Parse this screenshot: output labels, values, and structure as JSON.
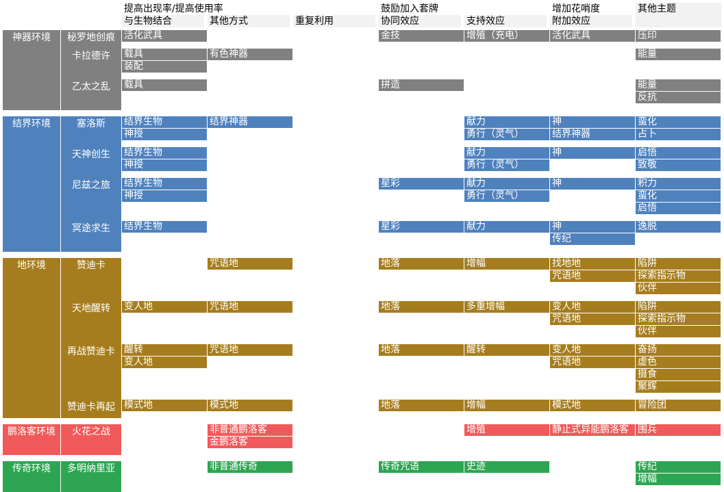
{
  "header": {
    "groups": [
      "提高出现率/提高使用率",
      "鼓励加入套牌",
      "增加花哨度",
      "其他主题"
    ],
    "columns": [
      "与生物结合",
      "其他方式",
      "重复利用",
      "协同效应",
      "支持效应",
      "附加效应"
    ]
  },
  "colors": {
    "gray": "#808080",
    "blue": "#4f81bd",
    "gold": "#a67d1e",
    "red": "#f05a5a",
    "green": "#2ea552"
  },
  "environments": [
    {
      "label": "神器环境",
      "color": "gray",
      "expansions": [
        {
          "label": "秘罗地创痕",
          "rows": 1,
          "cells": [
            {
              "col": 0,
              "row": 0,
              "text": "活化武具"
            },
            {
              "col": 3,
              "row": 0,
              "text": "金技"
            },
            {
              "col": 4,
              "row": 0,
              "text": "增殖（充电）"
            },
            {
              "col": 5,
              "row": 0,
              "text": "活化武具"
            },
            {
              "col": 6,
              "row": 0,
              "text": "压印"
            }
          ]
        },
        {
          "label": "卡拉德许",
          "rows": 2,
          "cells": [
            {
              "col": 0,
              "row": 0,
              "text": "载具"
            },
            {
              "col": 0,
              "row": 1,
              "text": "装配"
            },
            {
              "col": 1,
              "row": 0,
              "text": "有色神器"
            },
            {
              "col": 6,
              "row": 0,
              "text": "能量"
            }
          ]
        },
        {
          "label": "乙太之乱",
          "rows": 2,
          "cells": [
            {
              "col": 0,
              "row": 0,
              "text": "载具"
            },
            {
              "col": 3,
              "row": 0,
              "text": "拼造"
            },
            {
              "col": 6,
              "row": 0,
              "text": "能量"
            },
            {
              "col": 6,
              "row": 1,
              "text": "反抗"
            }
          ]
        }
      ]
    },
    {
      "label": "结界环境",
      "color": "blue",
      "expansions": [
        {
          "label": "塞洛斯",
          "rows": 2,
          "cells": [
            {
              "col": 0,
              "row": 0,
              "text": "结界生物"
            },
            {
              "col": 0,
              "row": 1,
              "text": "神授"
            },
            {
              "col": 1,
              "row": 0,
              "text": "结界神器"
            },
            {
              "col": 4,
              "row": 0,
              "text": "献力"
            },
            {
              "col": 4,
              "row": 1,
              "text": "勇行（灵气）"
            },
            {
              "col": 5,
              "row": 0,
              "text": "神"
            },
            {
              "col": 5,
              "row": 1,
              "text": "结界神器"
            },
            {
              "col": 6,
              "row": 0,
              "text": "蛮化"
            },
            {
              "col": 6,
              "row": 1,
              "text": "占卜"
            }
          ]
        },
        {
          "label": "天神创生",
          "rows": 2,
          "cells": [
            {
              "col": 0,
              "row": 0,
              "text": "结界生物"
            },
            {
              "col": 0,
              "row": 1,
              "text": "神授"
            },
            {
              "col": 4,
              "row": 0,
              "text": "献力"
            },
            {
              "col": 4,
              "row": 1,
              "text": "勇行（灵气）"
            },
            {
              "col": 5,
              "row": 0,
              "text": "神"
            },
            {
              "col": 6,
              "row": 0,
              "text": "启悟"
            },
            {
              "col": 6,
              "row": 1,
              "text": "致敬"
            }
          ]
        },
        {
          "label": "尼兹之旅",
          "rows": 3,
          "cells": [
            {
              "col": 0,
              "row": 0,
              "text": "结界生物"
            },
            {
              "col": 0,
              "row": 1,
              "text": "神授"
            },
            {
              "col": 3,
              "row": 0,
              "text": "星彩"
            },
            {
              "col": 4,
              "row": 0,
              "text": "献力"
            },
            {
              "col": 4,
              "row": 1,
              "text": "勇行（灵气）"
            },
            {
              "col": 5,
              "row": 0,
              "text": "神"
            },
            {
              "col": 6,
              "row": 0,
              "text": "积力"
            },
            {
              "col": 6,
              "row": 1,
              "text": "蛮化"
            },
            {
              "col": 6,
              "row": 2,
              "text": "启悟"
            }
          ]
        },
        {
          "label": "冥途求生",
          "rows": 2,
          "cells": [
            {
              "col": 0,
              "row": 0,
              "text": "结界生物"
            },
            {
              "col": 3,
              "row": 0,
              "text": "星彩"
            },
            {
              "col": 4,
              "row": 0,
              "text": "献力"
            },
            {
              "col": 5,
              "row": 0,
              "text": "神"
            },
            {
              "col": 5,
              "row": 1,
              "text": "传纪"
            },
            {
              "col": 6,
              "row": 0,
              "text": "逸脱"
            }
          ]
        }
      ]
    },
    {
      "label": "地环境",
      "color": "gold",
      "expansions": [
        {
          "label": "赞迪卡",
          "rows": 3,
          "cells": [
            {
              "col": 1,
              "row": 0,
              "text": "咒语地"
            },
            {
              "col": 3,
              "row": 0,
              "text": "地落"
            },
            {
              "col": 4,
              "row": 0,
              "text": "增幅"
            },
            {
              "col": 5,
              "row": 0,
              "text": "找地地"
            },
            {
              "col": 5,
              "row": 1,
              "text": "咒语地"
            },
            {
              "col": 6,
              "row": 0,
              "text": "陷阱"
            },
            {
              "col": 6,
              "row": 1,
              "text": "探索指示物"
            },
            {
              "col": 6,
              "row": 2,
              "text": "伙伴"
            }
          ]
        },
        {
          "label": "天地醒转",
          "rows": 3,
          "cells": [
            {
              "col": 0,
              "row": 0,
              "text": "变人地"
            },
            {
              "col": 1,
              "row": 0,
              "text": "咒语地"
            },
            {
              "col": 3,
              "row": 0,
              "text": "地落"
            },
            {
              "col": 4,
              "row": 0,
              "text": "多重增幅"
            },
            {
              "col": 5,
              "row": 0,
              "text": "变人地"
            },
            {
              "col": 5,
              "row": 1,
              "text": "咒语地"
            },
            {
              "col": 6,
              "row": 0,
              "text": "陷阱"
            },
            {
              "col": 6,
              "row": 1,
              "text": "探索指示物"
            },
            {
              "col": 6,
              "row": 2,
              "text": "伙伴"
            }
          ]
        },
        {
          "label": "再战赞迪卡",
          "rows": 4,
          "cells": [
            {
              "col": 0,
              "row": 0,
              "text": "醒转"
            },
            {
              "col": 0,
              "row": 1,
              "text": "变人地"
            },
            {
              "col": 1,
              "row": 0,
              "text": "咒语地"
            },
            {
              "col": 3,
              "row": 0,
              "text": "地落"
            },
            {
              "col": 4,
              "row": 0,
              "text": "醒转"
            },
            {
              "col": 5,
              "row": 0,
              "text": "变人地"
            },
            {
              "col": 5,
              "row": 1,
              "text": "咒语地"
            },
            {
              "col": 6,
              "row": 0,
              "text": "奋扬"
            },
            {
              "col": 6,
              "row": 1,
              "text": "虚色"
            },
            {
              "col": 6,
              "row": 2,
              "text": "摄食"
            },
            {
              "col": 6,
              "row": 3,
              "text": "聚辉"
            }
          ]
        },
        {
          "label": "赞迪卡再起",
          "rows": 1,
          "cells": [
            {
              "col": 0,
              "row": 0,
              "text": "模式地"
            },
            {
              "col": 1,
              "row": 0,
              "text": "模式地"
            },
            {
              "col": 3,
              "row": 0,
              "text": "地落"
            },
            {
              "col": 4,
              "row": 0,
              "text": "增幅"
            },
            {
              "col": 5,
              "row": 0,
              "text": "模式地"
            },
            {
              "col": 6,
              "row": 0,
              "text": "冒险团"
            }
          ]
        }
      ]
    },
    {
      "label": "鹏洛客环境",
      "color": "red",
      "expansions": [
        {
          "label": "火花之战",
          "rows": 2,
          "cells": [
            {
              "col": 1,
              "row": 0,
              "text": "非普通鹏洛客"
            },
            {
              "col": 1,
              "row": 1,
              "text": "金鹏洛客"
            },
            {
              "col": 4,
              "row": 0,
              "text": "增殖"
            },
            {
              "col": 5,
              "row": 0,
              "text": "静止式异能鹏洛客"
            },
            {
              "col": 6,
              "row": 0,
              "text": "围兵"
            }
          ]
        }
      ]
    },
    {
      "label": "传奇环境",
      "color": "green",
      "expansions": [
        {
          "label": "多明纳里亚",
          "rows": 2,
          "cells": [
            {
              "col": 1,
              "row": 0,
              "text": "非普通传奇"
            },
            {
              "col": 3,
              "row": 0,
              "text": "传奇咒语"
            },
            {
              "col": 4,
              "row": 0,
              "text": "史迹"
            },
            {
              "col": 6,
              "row": 0,
              "text": "传纪"
            },
            {
              "col": 6,
              "row": 1,
              "text": "增幅"
            }
          ]
        }
      ]
    }
  ]
}
